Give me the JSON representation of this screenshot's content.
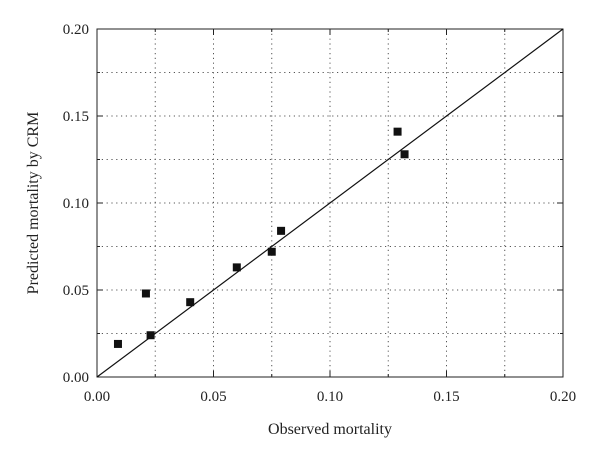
{
  "chart_data": {
    "type": "scatter",
    "title": "",
    "xlabel": "Observed mortality",
    "ylabel": "Predicted mortality by CRM",
    "xlim": [
      0,
      0.2
    ],
    "ylim": [
      0,
      0.2
    ],
    "x_ticks": [
      0,
      0.05,
      0.1,
      0.15,
      0.2
    ],
    "y_ticks": [
      0,
      0.05,
      0.1,
      0.15,
      0.2
    ],
    "x_tick_labels": [
      "0.00",
      "0.05",
      "0.10",
      "0.15",
      "0.20"
    ],
    "y_tick_labels": [
      "0.00",
      "0.05",
      "0.10",
      "0.15",
      "0.20"
    ],
    "grid": true,
    "grid_style": "dotted",
    "legend": "none",
    "marker": "square",
    "marker_color": "#111111",
    "reference_line": {
      "type": "identity",
      "from": [
        0,
        0
      ],
      "to": [
        0.2,
        0.2
      ]
    },
    "series": [
      {
        "points": [
          {
            "x": 0.009,
            "y": 0.019
          },
          {
            "x": 0.021,
            "y": 0.048
          },
          {
            "x": 0.023,
            "y": 0.024
          },
          {
            "x": 0.04,
            "y": 0.043
          },
          {
            "x": 0.06,
            "y": 0.063
          },
          {
            "x": 0.075,
            "y": 0.072
          },
          {
            "x": 0.079,
            "y": 0.084
          },
          {
            "x": 0.129,
            "y": 0.141
          },
          {
            "x": 0.132,
            "y": 0.128
          }
        ]
      }
    ]
  }
}
